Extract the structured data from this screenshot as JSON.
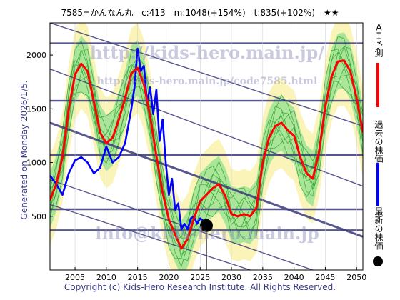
{
  "header": {
    "title": "7585=かんなん丸　c:413　m:1048(+154%)　t:835(+102%)　★★"
  },
  "side_text": "Generated on Monday 2026/1/5.",
  "footer": "Copyright (c) Kids-Hero Research Institute. All Rights Reserved.",
  "watermarks": [
    "http://kids-hero.main.jp/",
    "http://kids-hero.main.jp/code7585.html",
    "info@kids-hero.main.jp"
  ],
  "legend": [
    {
      "label": "ＡＩ予測",
      "color": "#ff0000"
    },
    {
      "label": "過去の株価",
      "color": "#0000ff"
    },
    {
      "label": "最新の株価",
      "color": "#000000"
    }
  ],
  "chart_data": {
    "type": "line",
    "xlim": [
      2001,
      2051
    ],
    "ylim": [
      0,
      2300
    ],
    "x_ticks": [
      2005,
      2010,
      2015,
      2020,
      2025,
      2030,
      2035,
      2040,
      2045,
      2050
    ],
    "y_ticks": [
      500,
      1000,
      1500,
      2000
    ],
    "colors": {
      "prediction": "#ff0000",
      "past": "#0000ff",
      "latest": "#000000",
      "band_green": "#90e090",
      "band_yellow": "#f8f0a0",
      "hline": "#3a3a7a"
    },
    "h_lines": [
      2110,
      1575,
      1070,
      565,
      370
    ],
    "trend_lines": [
      {
        "from": [
          2001,
          2300
        ],
        "to": [
          2051,
          1340
        ]
      },
      {
        "from": [
          2001,
          1870
        ],
        "to": [
          2051,
          780
        ]
      },
      {
        "from": [
          2001,
          1370
        ],
        "to": [
          2051,
          310
        ]
      },
      {
        "from": [
          2001,
          840
        ],
        "to": [
          2043,
          0
        ]
      },
      {
        "from": [
          2001,
          610
        ],
        "to": [
          2033,
          0
        ]
      }
    ],
    "series": [
      {
        "name": "ＡＩ予測",
        "x": [
          2001,
          2002,
          2003,
          2004,
          2005,
          2006,
          2007,
          2008,
          2009,
          2010,
          2011,
          2012,
          2013,
          2014,
          2015,
          2016,
          2017,
          2018,
          2019,
          2020,
          2021,
          2022,
          2023,
          2024,
          2025,
          2026,
          2027,
          2028,
          2029,
          2030,
          2031,
          2032,
          2033,
          2034,
          2035,
          2036,
          2037,
          2038,
          2039,
          2040,
          2041,
          2042,
          2043,
          2044,
          2045,
          2046,
          2047,
          2048,
          2049,
          2050,
          2051
        ],
        "values": [
          650,
          800,
          1050,
          1500,
          1820,
          1920,
          1850,
          1570,
          1280,
          1180,
          1230,
          1400,
          1600,
          1830,
          1880,
          1730,
          1430,
          1060,
          720,
          470,
          330,
          200,
          290,
          480,
          640,
          700,
          760,
          800,
          690,
          520,
          500,
          520,
          500,
          580,
          1000,
          1230,
          1340,
          1370,
          1300,
          1250,
          1050,
          900,
          850,
          1100,
          1520,
          1800,
          1940,
          1950,
          1850,
          1600,
          1280
        ]
      },
      {
        "name": "過去の株価",
        "x": [
          2001,
          2002,
          2003,
          2004,
          2005,
          2006,
          2007,
          2008,
          2009,
          2010,
          2011,
          2012,
          2013,
          2014,
          2014.5,
          2015,
          2015.5,
          2016,
          2016.5,
          2017,
          2017.5,
          2018,
          2018.5,
          2019,
          2019.5,
          2020,
          2020.5,
          2021,
          2021.5,
          2022,
          2022.5,
          2023,
          2023.5,
          2024,
          2024.5,
          2025,
          2025.5
        ],
        "values": [
          880,
          800,
          700,
          900,
          1020,
          1050,
          1000,
          900,
          950,
          1150,
          1000,
          1050,
          1180,
          1500,
          1700,
          2060,
          1850,
          1900,
          1560,
          1700,
          1450,
          1680,
          1200,
          1400,
          1000,
          700,
          850,
          560,
          620,
          380,
          430,
          380,
          480,
          500,
          430,
          480,
          460
        ]
      }
    ],
    "latest": {
      "x": 2026,
      "y": 413
    }
  }
}
